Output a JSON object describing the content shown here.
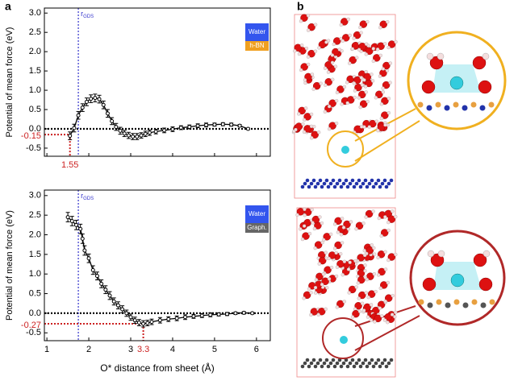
{
  "panels": [
    "a",
    "b"
  ],
  "chart_data": [
    {
      "type": "line",
      "ylabel": "Potential of mean force (eV)",
      "x": [
        1.55,
        1.65,
        1.75,
        1.85,
        1.95,
        2.05,
        2.15,
        2.25,
        2.35,
        2.45,
        2.55,
        2.65,
        2.75,
        2.85,
        2.95,
        3.05,
        3.15,
        3.25,
        3.35,
        3.45,
        3.6,
        3.8,
        4.0,
        4.2,
        4.4,
        4.6,
        4.8,
        5.0,
        5.2,
        5.4,
        5.6,
        5.8
      ],
      "series": [
        {
          "color": "#000000",
          "values": [
            -0.18,
            0.02,
            0.35,
            0.55,
            0.7,
            0.78,
            0.8,
            0.77,
            0.62,
            0.4,
            0.2,
            0.05,
            -0.05,
            -0.12,
            -0.17,
            -0.2,
            -0.2,
            -0.17,
            -0.13,
            -0.1,
            -0.07,
            -0.04,
            -0.01,
            0.03,
            0.05,
            0.08,
            0.1,
            0.11,
            0.12,
            0.11,
            0.08,
            0.0
          ],
          "errors": [
            0.1,
            0.1,
            0.1,
            0.1,
            0.1,
            0.1,
            0.1,
            0.1,
            0.1,
            0.1,
            0.09,
            0.09,
            0.09,
            0.08,
            0.08,
            0.08,
            0.08,
            0.07,
            0.07,
            0.07,
            0.06,
            0.06,
            0.06,
            0.05,
            0.05,
            0.05,
            0.05,
            0.04,
            0.04,
            0.04,
            0.03,
            0.02
          ]
        }
      ],
      "xlim": [
        0.94,
        6.33
      ],
      "ylim": [
        -0.71,
        3.13
      ],
      "xticks": [
        1,
        2,
        3,
        4,
        5,
        6
      ],
      "xtick_labels": false,
      "yticks": [
        {
          "value": 3,
          "label": "3.0"
        },
        2.5,
        {
          "value": 2,
          "label": "2.0"
        },
        1.5,
        {
          "value": 1,
          "label": "1.0"
        },
        0.5,
        {
          "value": 0,
          "label": "0.0"
        },
        -0.5
      ],
      "zero_line": true,
      "gds": {
        "x": 1.75,
        "label": "r",
        "sub": "GDS",
        "color": "#3333cc"
      },
      "marker": {
        "x": 1.55,
        "y": -0.15,
        "color": "#cc2222"
      },
      "legend": [
        {
          "name": "Water",
          "color": "#3355ee"
        },
        {
          "name": "h-BN",
          "color": "#f0a020"
        }
      ]
    },
    {
      "type": "line",
      "ylabel": "Potential of mean force (eV)",
      "xlabel": "O* distance from sheet (Å)",
      "x": [
        1.5,
        1.6,
        1.7,
        1.8,
        1.85,
        1.9,
        2.0,
        2.1,
        2.2,
        2.3,
        2.4,
        2.5,
        2.6,
        2.7,
        2.8,
        2.9,
        3.0,
        3.1,
        3.2,
        3.3,
        3.4,
        3.5,
        3.7,
        3.9,
        4.1,
        4.3,
        4.5,
        4.7,
        4.9,
        5.1,
        5.3,
        5.5,
        5.7,
        5.9
      ],
      "series": [
        {
          "color": "#000000",
          "values": [
            2.45,
            2.35,
            2.25,
            2.15,
            1.9,
            1.6,
            1.4,
            1.1,
            0.95,
            0.75,
            0.6,
            0.45,
            0.3,
            0.2,
            0.1,
            0.0,
            -0.1,
            -0.18,
            -0.24,
            -0.27,
            -0.25,
            -0.22,
            -0.18,
            -0.15,
            -0.13,
            -0.1,
            -0.08,
            -0.06,
            -0.04,
            -0.03,
            -0.02,
            0.0,
            0.01,
            0.0
          ],
          "errors": [
            0.12,
            0.12,
            0.12,
            0.12,
            0.12,
            0.12,
            0.11,
            0.11,
            0.1,
            0.1,
            0.1,
            0.1,
            0.09,
            0.09,
            0.09,
            0.08,
            0.08,
            0.08,
            0.08,
            0.08,
            0.07,
            0.07,
            0.07,
            0.06,
            0.06,
            0.06,
            0.05,
            0.05,
            0.05,
            0.04,
            0.04,
            0.03,
            0.03,
            0.02
          ]
        }
      ],
      "xlim": [
        0.94,
        6.33
      ],
      "ylim": [
        -0.7,
        3.14
      ],
      "xticks": [
        1,
        2,
        3,
        4,
        5,
        6
      ],
      "xtick_labels": true,
      "yticks": [
        {
          "value": 3,
          "label": "3.0"
        },
        2.5,
        {
          "value": 2,
          "label": "2.0"
        },
        1.5,
        {
          "value": 1,
          "label": "1.0"
        },
        0.5,
        {
          "value": 0,
          "label": "0.0"
        },
        -0.5
      ],
      "zero_line": true,
      "gds": {
        "x": 1.75,
        "label": "r",
        "sub": "GDS",
        "color": "#3333cc"
      },
      "marker": {
        "x": 3.3,
        "y": -0.27,
        "color": "#cc2222"
      },
      "legend": [
        {
          "name": "Water",
          "color": "#3355ee"
        },
        {
          "name": "Graph.",
          "color": "#666666"
        }
      ]
    }
  ]
}
